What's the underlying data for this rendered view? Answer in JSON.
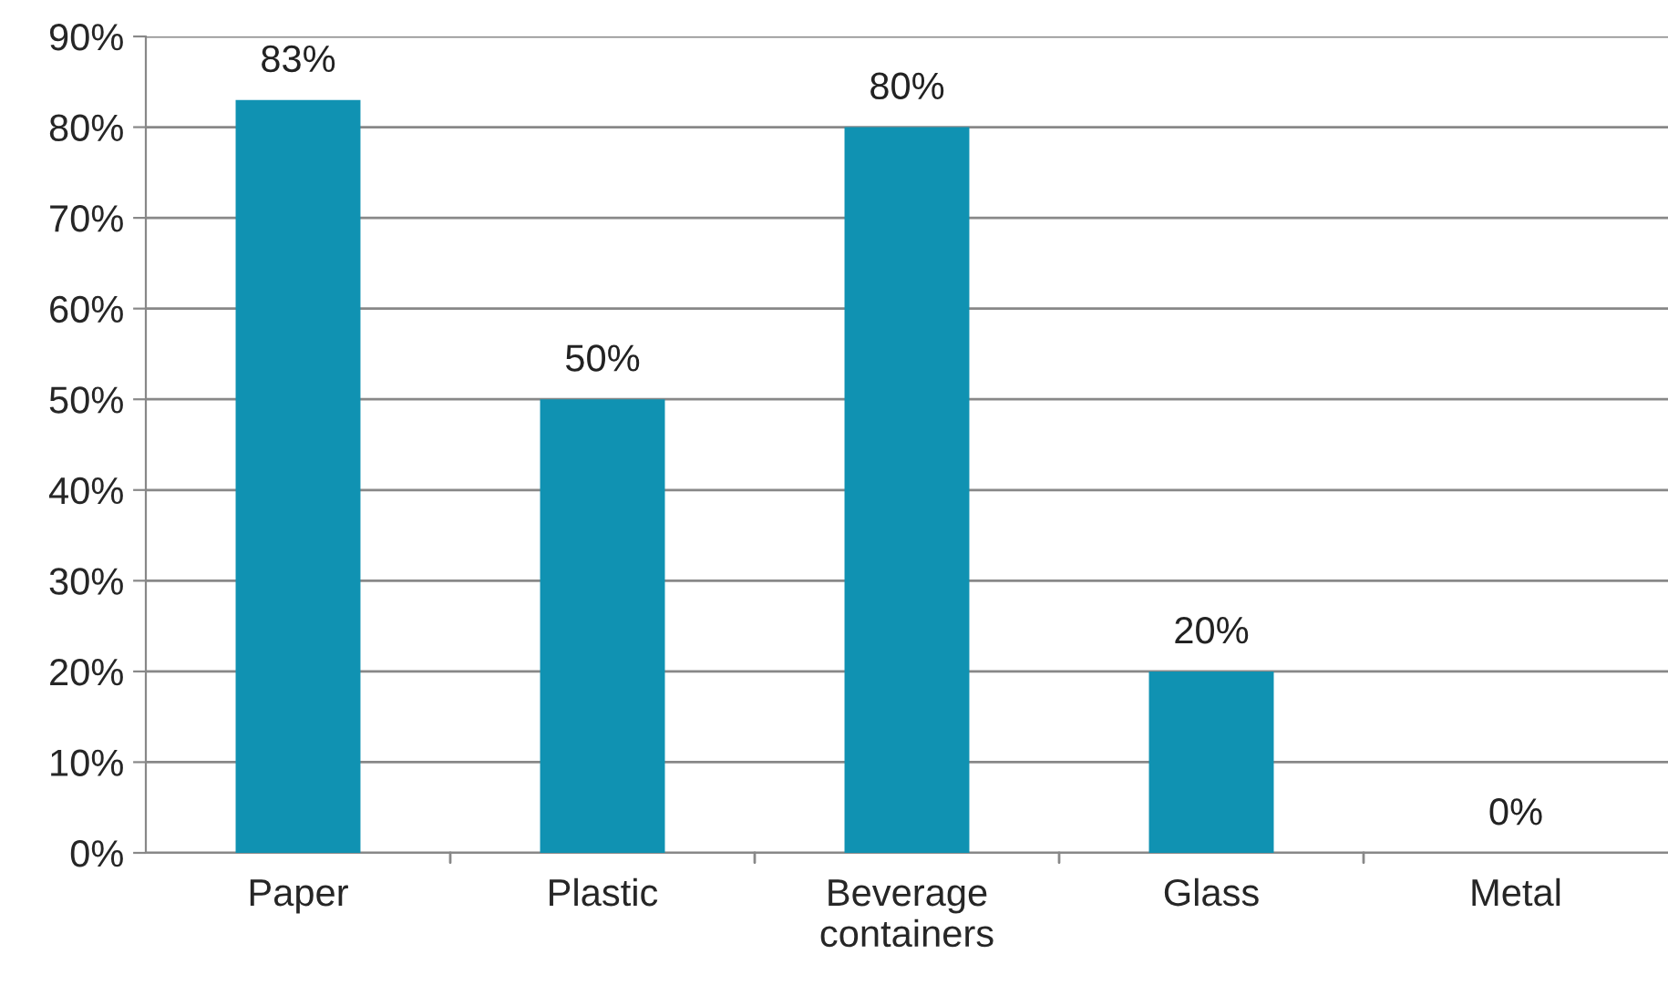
{
  "chart_data": {
    "type": "bar",
    "categories": [
      "Paper",
      "Plastic",
      "Beverage\ncontainers",
      "Glass",
      "Metal"
    ],
    "values": [
      83,
      50,
      80,
      20,
      0
    ],
    "value_labels": [
      "83%",
      "50%",
      "80%",
      "20%",
      "0%"
    ],
    "color": "#1092b2",
    "ylim": [
      0,
      90
    ],
    "yticks": [
      {
        "value": 0,
        "label": "0%"
      },
      {
        "value": 10,
        "label": "10%"
      },
      {
        "value": 20,
        "label": "20%"
      },
      {
        "value": 30,
        "label": "30%"
      },
      {
        "value": 40,
        "label": "40%"
      },
      {
        "value": 50,
        "label": "50%"
      },
      {
        "value": 60,
        "label": "60%"
      },
      {
        "value": 70,
        "label": "70%"
      },
      {
        "value": 80,
        "label": "80%"
      },
      {
        "value": 90,
        "label": "90%"
      }
    ],
    "grid": "y",
    "legend": false
  }
}
